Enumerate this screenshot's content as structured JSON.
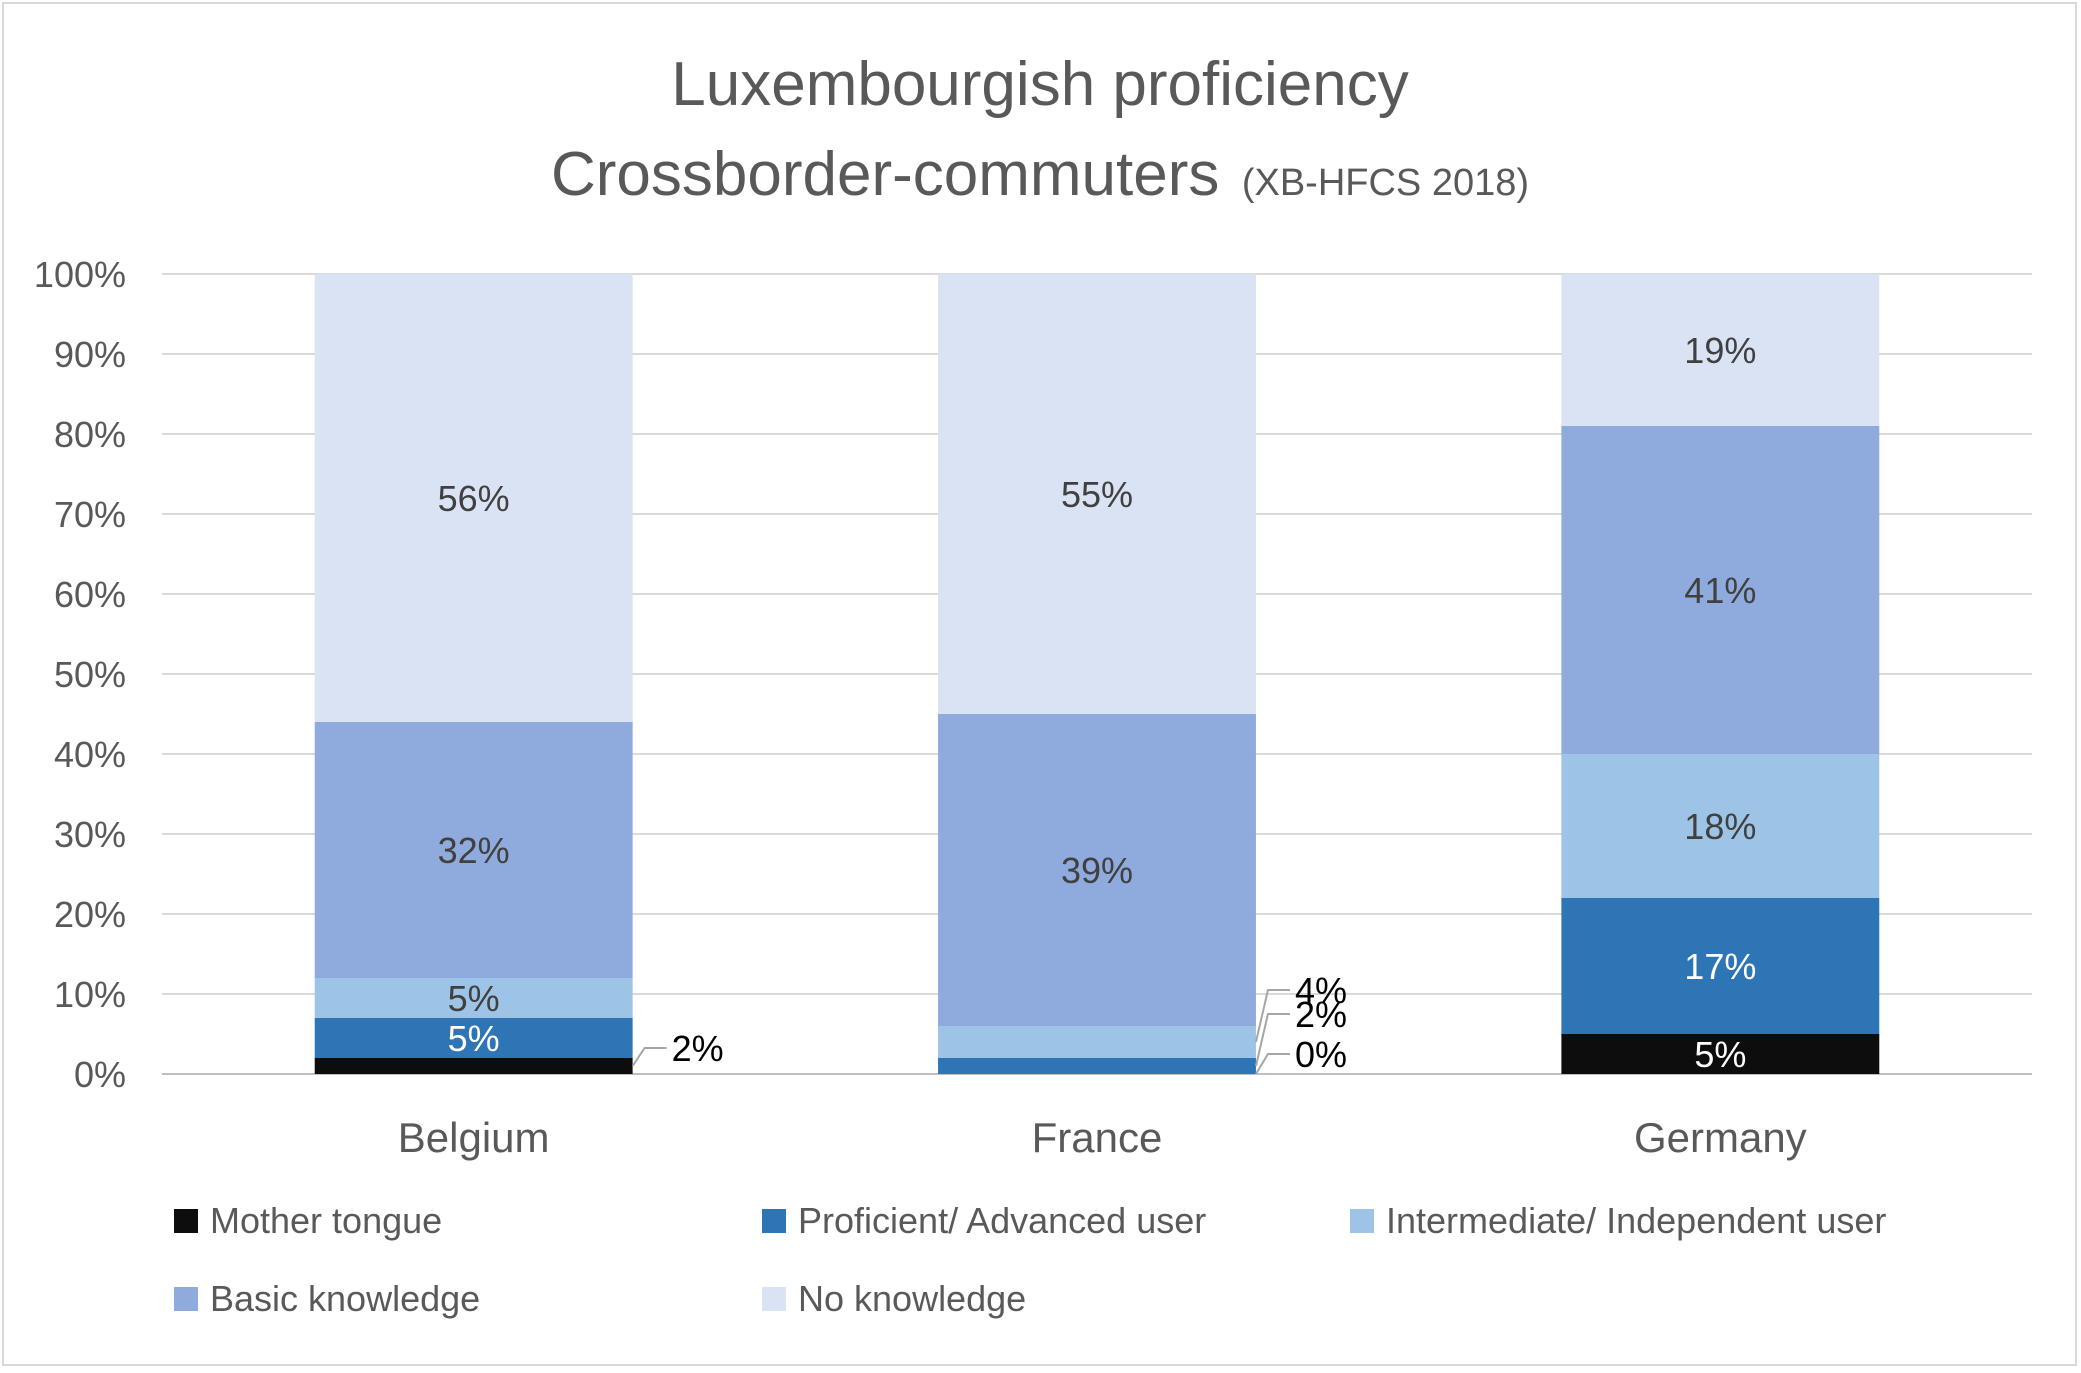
{
  "chart_data": {
    "type": "bar",
    "stacked": true,
    "percent": true,
    "title": "Luxembourgish proficiency",
    "subtitle_main": "Crossborder-commuters",
    "subtitle_note": "(XB-HFCS 2018)",
    "categories": [
      "Belgium",
      "France",
      "Germany"
    ],
    "ylim": [
      0,
      100
    ],
    "yticks": [
      "0%",
      "10%",
      "20%",
      "30%",
      "40%",
      "50%",
      "60%",
      "70%",
      "80%",
      "90%",
      "100%"
    ],
    "grid": true,
    "legend_position": "bottom",
    "series": [
      {
        "name": "Mother tongue",
        "color": "#0d0d0d",
        "label_color": "#ffffff",
        "values": [
          2,
          0,
          5
        ],
        "labels": [
          "2%",
          "0%",
          "5%"
        ]
      },
      {
        "name": "Proficient/ Advanced user",
        "color": "#2e75b6",
        "label_color": "#ffffff",
        "values": [
          5,
          2,
          17
        ],
        "labels": [
          "5%",
          "2%",
          "17%"
        ]
      },
      {
        "name": "Intermediate/ Independent user",
        "color": "#9dc3e6",
        "label_color": "#404040",
        "values": [
          5,
          4,
          18
        ],
        "labels": [
          "5%",
          "4%",
          "18%"
        ]
      },
      {
        "name": "Basic knowledge",
        "color": "#8faadc",
        "label_color": "#404040",
        "values": [
          32,
          39,
          41
        ],
        "labels": [
          "32%",
          "39%",
          "41%"
        ]
      },
      {
        "name": "No knowledge",
        "color": "#dae3f3",
        "label_color": "#404040",
        "values": [
          56,
          55,
          19
        ],
        "labels": [
          "56%",
          "55%",
          "19%"
        ]
      }
    ]
  }
}
